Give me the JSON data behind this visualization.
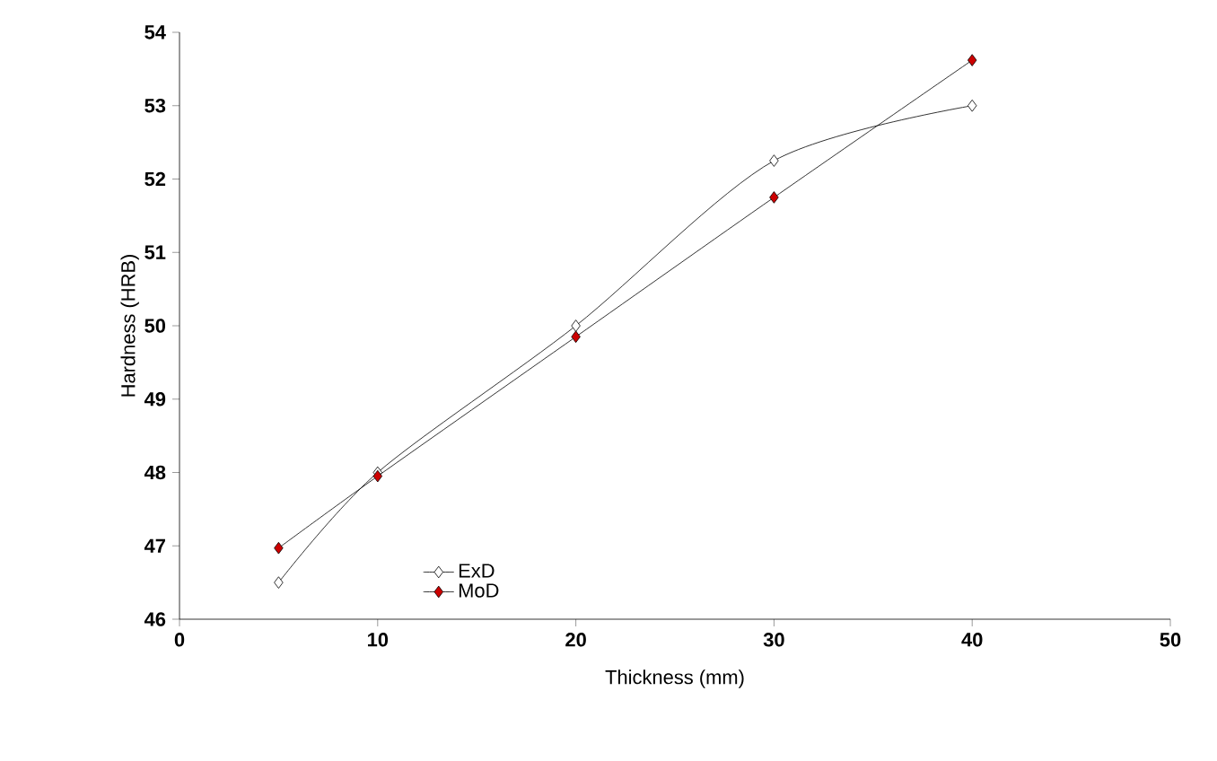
{
  "chart_data": {
    "type": "line",
    "xlabel": "Thickness (mm)",
    "ylabel": "Hardness (HRB)",
    "x": [
      5,
      10,
      20,
      30,
      40
    ],
    "series": [
      {
        "name": "ExD",
        "color": "#ffffff",
        "values": [
          46.5,
          48.0,
          50.0,
          52.25,
          53.0
        ]
      },
      {
        "name": "MoD",
        "color": "#cc0000",
        "values": [
          46.97,
          47.95,
          49.85,
          51.75,
          53.62
        ]
      }
    ],
    "xlim": [
      0,
      50
    ],
    "xticks": [
      0,
      10,
      20,
      30,
      40,
      50
    ],
    "ylim": [
      46,
      54
    ],
    "yticks": [
      46,
      47,
      48,
      49,
      50,
      51,
      52,
      53,
      54
    ],
    "marker": "diamond",
    "line_style": "solid",
    "legend": "bottom left",
    "grid": false
  }
}
